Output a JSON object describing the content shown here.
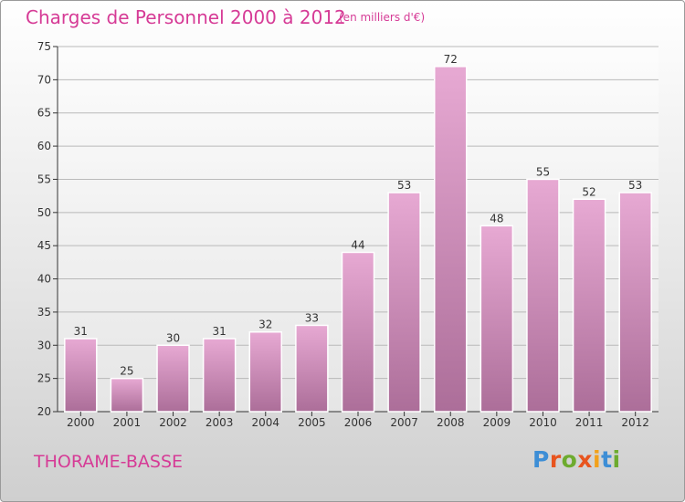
{
  "header": {
    "title": "Charges de Personnel 2000 à 2012",
    "subtitle": "(en milliers d'€)"
  },
  "footer": {
    "commune": "THORAME-BASSE",
    "logo_letters": [
      "P",
      "r",
      "o",
      "x",
      "i",
      "t",
      "i"
    ],
    "logo_colors": [
      "#3d8ed6",
      "#e8541e",
      "#6dab2e",
      "#e8541e",
      "#f2a11b",
      "#3d8ed6",
      "#6dab2e"
    ]
  },
  "chart_data": {
    "type": "bar",
    "title": "Charges de Personnel 2000 à 2012",
    "subtitle": "(en milliers d'€)",
    "categories": [
      "2000",
      "2001",
      "2002",
      "2003",
      "2004",
      "2005",
      "2006",
      "2007",
      "2008",
      "2009",
      "2010",
      "2011",
      "2012"
    ],
    "values": [
      31,
      25,
      30,
      31,
      32,
      33,
      44,
      53,
      72,
      48,
      55,
      52,
      53
    ],
    "ylim": [
      20,
      75
    ],
    "yticks": [
      20,
      25,
      30,
      35,
      40,
      45,
      50,
      55,
      60,
      65,
      70,
      75
    ],
    "grid": true,
    "bar_color": "#d98fbf"
  }
}
